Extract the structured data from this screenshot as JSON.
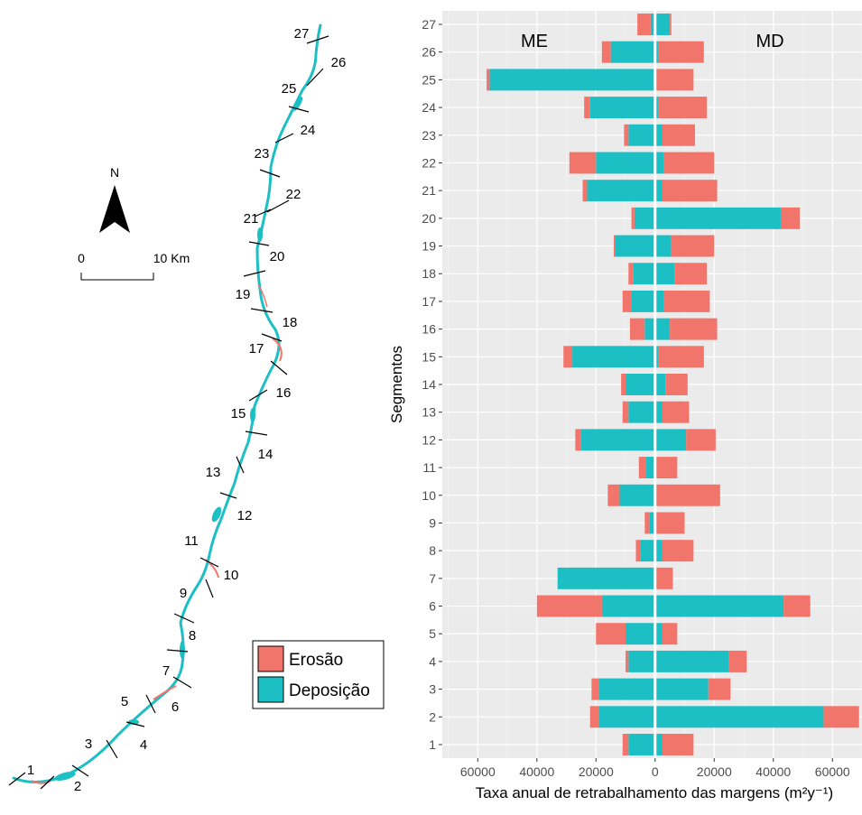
{
  "map": {
    "north_label": "N",
    "scale_start": "0",
    "scale_end": "10 Km",
    "segment_labels": [
      "1",
      "2",
      "3",
      "4",
      "5",
      "6",
      "7",
      "8",
      "9",
      "10",
      "11",
      "12",
      "13",
      "14",
      "15",
      "16",
      "17",
      "18",
      "19",
      "20",
      "21",
      "22",
      "23",
      "24",
      "25",
      "26",
      "27"
    ]
  },
  "legend": {
    "items": [
      {
        "label": "Erosão",
        "color": "#F2756B"
      },
      {
        "label": "Deposição",
        "color": "#1BBFC4"
      }
    ]
  },
  "chart_data": {
    "type": "bar",
    "orientation": "horizontal",
    "stacked": true,
    "diverging": true,
    "categories": [
      "1",
      "2",
      "3",
      "4",
      "5",
      "6",
      "7",
      "8",
      "9",
      "10",
      "11",
      "12",
      "13",
      "14",
      "15",
      "16",
      "17",
      "18",
      "19",
      "20",
      "21",
      "22",
      "23",
      "24",
      "25",
      "26",
      "27"
    ],
    "xlabel": "Taxa anual de retrabalhamento das margens (m²y⁻¹)",
    "ylabel": "Segmentos",
    "xlim": [
      -72000,
      70000
    ],
    "xticks": [
      -60000,
      -40000,
      -20000,
      0,
      20000,
      40000,
      60000
    ],
    "xtick_labels": [
      "60000",
      "40000",
      "20000",
      "0",
      "20000",
      "40000",
      "60000"
    ],
    "side_labels": {
      "left": "ME",
      "right": "MD"
    },
    "grid": true,
    "series_colors": {
      "erosion": "#F2756B",
      "deposition": "#1BBFC4"
    },
    "left_series": {
      "name": "ME",
      "deposition": [
        9000,
        19000,
        19000,
        9000,
        10000,
        18000,
        33000,
        5000,
        2000,
        12000,
        3000,
        25000,
        9000,
        10000,
        28000,
        3500,
        8000,
        7500,
        13500,
        7000,
        23000,
        20000,
        9000,
        22000,
        56000,
        15000,
        1500
      ],
      "erosion": [
        2000,
        3000,
        2500,
        1000,
        10000,
        22000,
        0,
        1500,
        1500,
        4000,
        2500,
        2000,
        2000,
        1500,
        3000,
        5000,
        3000,
        1500,
        500,
        1000,
        1500,
        9000,
        1500,
        2000,
        1000,
        3000,
        4500
      ]
    },
    "right_series": {
      "name": "MD",
      "deposition": [
        2500,
        57000,
        18000,
        25000,
        2500,
        43500,
        0,
        2500,
        0,
        0,
        0,
        10500,
        2500,
        3500,
        1000,
        5000,
        3000,
        6500,
        5500,
        42500,
        2500,
        3000,
        2500,
        1000,
        0,
        1000,
        5000
      ],
      "erosion": [
        10500,
        12000,
        7500,
        6000,
        5000,
        9000,
        6000,
        10500,
        10000,
        22000,
        7500,
        10000,
        9000,
        7500,
        15500,
        16000,
        15500,
        11000,
        14500,
        6500,
        18500,
        17000,
        11000,
        16500,
        13000,
        15500,
        500
      ]
    }
  }
}
